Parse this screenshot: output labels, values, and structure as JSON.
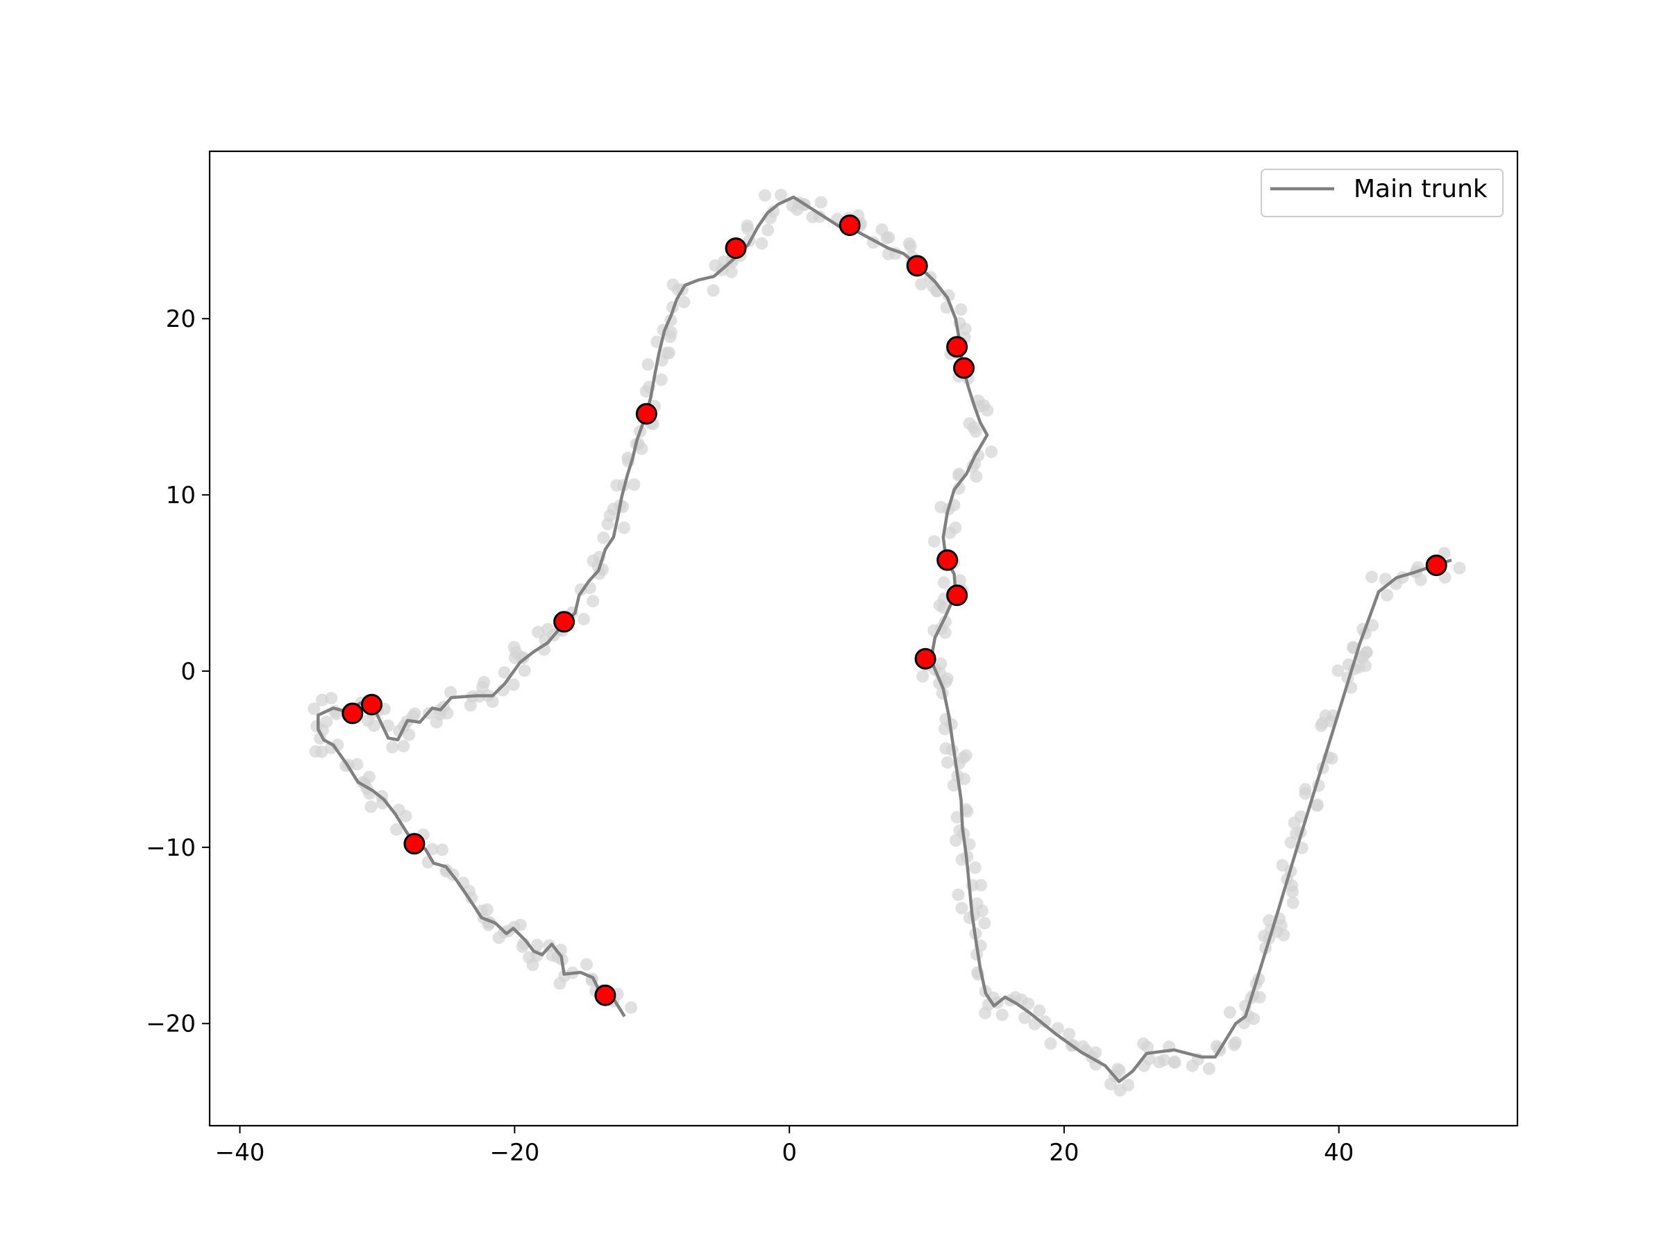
{
  "chart_data": {
    "type": "scatter",
    "title": "",
    "xlabel": "",
    "ylabel": "",
    "xlim": [
      -42.2,
      53.0
    ],
    "ylim": [
      -25.8,
      29.5
    ],
    "xticks": [
      -40,
      -20,
      0,
      20,
      40
    ],
    "yticks": [
      -20,
      -10,
      0,
      10,
      20
    ],
    "xtick_labels": [
      "−40",
      "−20",
      "0",
      "20",
      "40"
    ],
    "ytick_labels": [
      "−20",
      "−10",
      "0",
      "10",
      "20"
    ],
    "grid": false,
    "legend": {
      "position": "top-right",
      "entries": [
        "Main trunk"
      ]
    },
    "colors": {
      "trunk": "#808080",
      "background_points": "#d3d3d3",
      "highlight_fill": "#ff0000",
      "highlight_edge": "#000000",
      "axes": "#000000"
    },
    "series": [
      {
        "name": "Main trunk",
        "kind": "line",
        "points": [
          [
            -12.0,
            -19.6
          ],
          [
            -12.8,
            -18.6
          ],
          [
            -13.8,
            -18.2
          ],
          [
            -14.3,
            -17.4
          ],
          [
            -15.2,
            -17.1
          ],
          [
            -16.4,
            -17.2
          ],
          [
            -16.6,
            -16.2
          ],
          [
            -17.3,
            -15.5
          ],
          [
            -18.0,
            -16.1
          ],
          [
            -18.6,
            -15.9
          ],
          [
            -19.2,
            -15.3
          ],
          [
            -20.1,
            -14.6
          ],
          [
            -20.6,
            -14.9
          ],
          [
            -21.4,
            -14.3
          ],
          [
            -22.4,
            -14.0
          ],
          [
            -22.9,
            -13.4
          ],
          [
            -23.5,
            -12.7
          ],
          [
            -24.2,
            -11.9
          ],
          [
            -25.0,
            -11.1
          ],
          [
            -25.9,
            -10.9
          ],
          [
            -26.5,
            -10.1
          ],
          [
            -27.3,
            -9.8
          ],
          [
            -27.9,
            -9.1
          ],
          [
            -28.7,
            -8.1
          ],
          [
            -29.5,
            -7.3
          ],
          [
            -30.3,
            -6.8
          ],
          [
            -31.4,
            -6.3
          ],
          [
            -32.2,
            -5.3
          ],
          [
            -33.2,
            -4.2
          ],
          [
            -33.9,
            -3.9
          ],
          [
            -34.3,
            -3.3
          ],
          [
            -34.3,
            -2.5
          ],
          [
            -33.2,
            -2.1
          ],
          [
            -32.2,
            -2.3
          ],
          [
            -31.2,
            -1.8
          ],
          [
            -30.3,
            -2.0
          ],
          [
            -29.2,
            -3.8
          ],
          [
            -28.5,
            -3.9
          ],
          [
            -27.8,
            -2.8
          ],
          [
            -26.9,
            -2.9
          ],
          [
            -26.0,
            -2.1
          ],
          [
            -25.4,
            -2.2
          ],
          [
            -24.6,
            -1.5
          ],
          [
            -22.8,
            -1.4
          ],
          [
            -21.6,
            -1.4
          ],
          [
            -20.7,
            -0.7
          ],
          [
            -19.6,
            0.5
          ],
          [
            -18.6,
            1.1
          ],
          [
            -17.6,
            1.6
          ],
          [
            -16.4,
            2.7
          ],
          [
            -15.6,
            3.3
          ],
          [
            -15.3,
            4.3
          ],
          [
            -14.6,
            5.1
          ],
          [
            -13.9,
            5.7
          ],
          [
            -13.4,
            6.9
          ],
          [
            -12.8,
            7.6
          ],
          [
            -12.5,
            8.7
          ],
          [
            -12.2,
            9.9
          ],
          [
            -11.8,
            11.1
          ],
          [
            -11.4,
            12.1
          ],
          [
            -11.1,
            13.1
          ],
          [
            -10.5,
            14.4
          ],
          [
            -10.1,
            15.5
          ],
          [
            -9.8,
            16.8
          ],
          [
            -9.5,
            18.0
          ],
          [
            -9.1,
            19.3
          ],
          [
            -8.6,
            20.2
          ],
          [
            -8.2,
            21.1
          ],
          [
            -7.6,
            21.9
          ],
          [
            -6.6,
            22.2
          ],
          [
            -5.5,
            22.4
          ],
          [
            -4.6,
            23.0
          ],
          [
            -3.9,
            23.5
          ],
          [
            -3.0,
            24.2
          ],
          [
            -2.3,
            25.2
          ],
          [
            -1.6,
            26.0
          ],
          [
            -0.8,
            26.5
          ],
          [
            0.3,
            26.9
          ],
          [
            1.3,
            26.4
          ],
          [
            2.5,
            25.8
          ],
          [
            3.7,
            25.2
          ],
          [
            4.8,
            25.0
          ],
          [
            6.0,
            24.5
          ],
          [
            7.2,
            24.0
          ],
          [
            8.3,
            23.7
          ],
          [
            9.4,
            23.0
          ],
          [
            10.6,
            22.1
          ],
          [
            11.5,
            21.2
          ],
          [
            12.1,
            20.0
          ],
          [
            12.4,
            18.7
          ],
          [
            12.6,
            17.4
          ],
          [
            13.0,
            16.2
          ],
          [
            13.4,
            15.2
          ],
          [
            13.9,
            14.1
          ],
          [
            14.4,
            13.4
          ],
          [
            13.5,
            12.2
          ],
          [
            12.9,
            11.2
          ],
          [
            12.0,
            10.3
          ],
          [
            11.5,
            9.0
          ],
          [
            11.2,
            7.6
          ],
          [
            11.4,
            6.4
          ],
          [
            12.0,
            5.5
          ],
          [
            12.1,
            4.4
          ],
          [
            11.3,
            3.0
          ],
          [
            10.6,
            1.9
          ],
          [
            10.3,
            0.6
          ],
          [
            10.6,
            0.1
          ],
          [
            11.2,
            -1.0
          ],
          [
            11.6,
            -2.5
          ],
          [
            11.9,
            -4.1
          ],
          [
            12.2,
            -5.7
          ],
          [
            12.5,
            -7.3
          ],
          [
            12.6,
            -8.9
          ],
          [
            12.9,
            -10.6
          ],
          [
            13.1,
            -12.2
          ],
          [
            13.3,
            -13.8
          ],
          [
            13.6,
            -15.4
          ],
          [
            13.9,
            -16.9
          ],
          [
            14.3,
            -18.3
          ],
          [
            14.9,
            -19.0
          ],
          [
            15.7,
            -18.5
          ],
          [
            16.6,
            -18.9
          ],
          [
            17.5,
            -19.4
          ],
          [
            19.4,
            -20.6
          ],
          [
            21.2,
            -21.6
          ],
          [
            23.0,
            -22.4
          ],
          [
            24.0,
            -23.3
          ],
          [
            25.0,
            -22.7
          ],
          [
            26.0,
            -21.7
          ],
          [
            28.0,
            -21.5
          ],
          [
            30.0,
            -21.9
          ],
          [
            31.0,
            -21.9
          ],
          [
            32.5,
            -20.0
          ],
          [
            33.2,
            -19.6
          ],
          [
            34.0,
            -17.6
          ],
          [
            35.5,
            -13.8
          ],
          [
            37.0,
            -9.9
          ],
          [
            38.5,
            -6.1
          ],
          [
            40.0,
            -2.3
          ],
          [
            41.5,
            1.5
          ],
          [
            42.9,
            4.5
          ],
          [
            44.2,
            5.3
          ],
          [
            45.5,
            5.6
          ],
          [
            47.0,
            6.0
          ],
          [
            48.2,
            6.3
          ]
        ]
      },
      {
        "kind": "scatter-highlight",
        "points": [
          [
            -3.9,
            24.0
          ],
          [
            4.4,
            25.3
          ],
          [
            9.3,
            23.0
          ],
          [
            12.2,
            18.4
          ],
          [
            12.7,
            17.2
          ],
          [
            -10.4,
            14.6
          ],
          [
            11.5,
            6.3
          ],
          [
            12.2,
            4.3
          ],
          [
            9.9,
            0.7
          ],
          [
            -16.4,
            2.8
          ],
          [
            -30.4,
            -1.9
          ],
          [
            -31.8,
            -2.4
          ],
          [
            -27.3,
            -9.8
          ],
          [
            -13.4,
            -18.4
          ],
          [
            47.1,
            6.0
          ]
        ]
      }
    ]
  }
}
